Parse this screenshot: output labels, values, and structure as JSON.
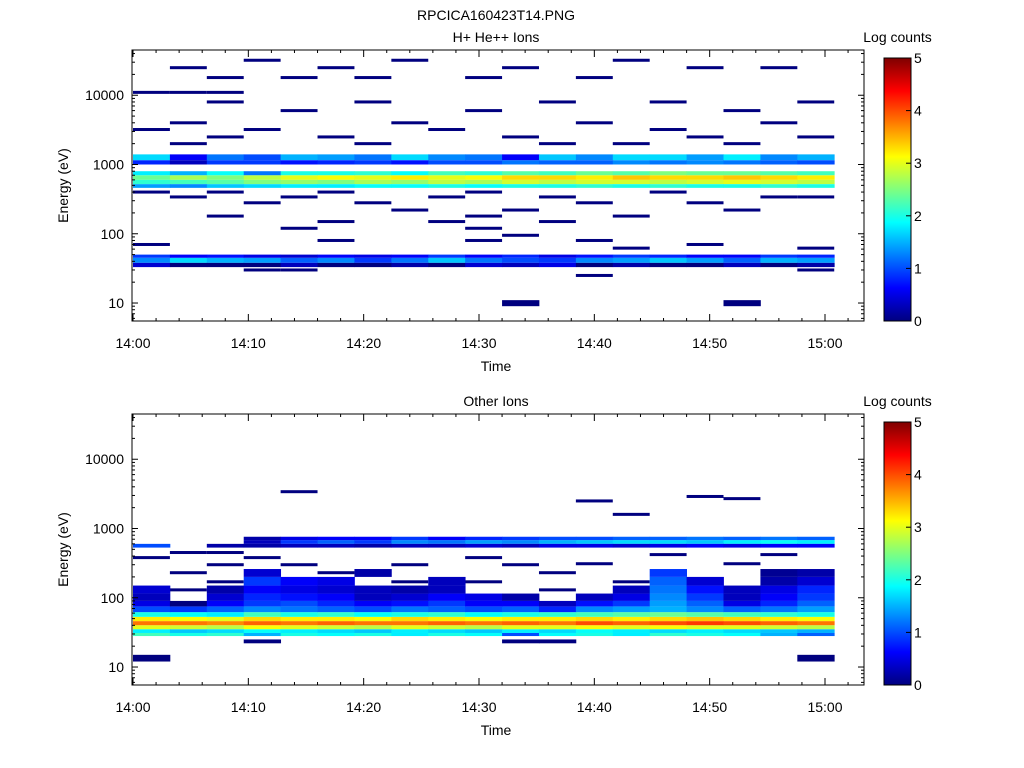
{
  "figure_title": "RPCICA160423T14.PNG",
  "colorbar_label": "Log counts",
  "colors": {
    "jet_stops": [
      "#00007f",
      "#0000ff",
      "#007fff",
      "#00ffff",
      "#7fff7f",
      "#ffff00",
      "#ff7f00",
      "#ff0000",
      "#7f0000"
    ]
  },
  "chart_data": [
    {
      "type": "heatmap",
      "title": "H+ He++ Ions",
      "xlabel": "Time",
      "ylabel": "Energy (eV)",
      "x_ticks": [
        "14:00",
        "14:10",
        "14:20",
        "14:30",
        "14:40",
        "14:50",
        "15:00"
      ],
      "xlim_minutes": [
        0,
        63
      ],
      "y_ticks": [
        "10",
        "100",
        "1000",
        "10000"
      ],
      "y_scale": "log",
      "ylim": [
        5.5,
        45000
      ],
      "colorbar_ticks": [
        "0",
        "1",
        "2",
        "3",
        "4",
        "5"
      ],
      "clim": [
        0,
        5
      ],
      "time_bin_minutes": 3.2,
      "bands": [
        {
          "e0": 600,
          "e1": 700,
          "v": [
            2.4,
            2.7,
            2.5,
            2.8,
            3.0,
            3.1,
            3.0,
            3.2,
            3.0,
            3.1,
            3.3,
            3.3,
            3.2,
            3.4,
            3.3,
            3.3,
            3.4,
            3.3,
            3.2
          ]
        },
        {
          "e0": 520,
          "e1": 600,
          "v": [
            2.1,
            2.2,
            2.3,
            2.5,
            2.6,
            2.5,
            2.7,
            2.6,
            2.8,
            2.7,
            2.9,
            2.8,
            2.9,
            2.9,
            2.8,
            2.9,
            3.0,
            2.9,
            2.8
          ]
        },
        {
          "e0": 460,
          "e1": 520,
          "v": [
            1.4,
            1.3,
            1.6,
            1.7,
            1.8,
            1.8,
            1.9,
            1.9,
            2.0,
            1.9,
            2.0,
            2.0,
            2.1,
            2.0,
            2.1,
            2.0,
            2.0,
            2.1,
            2.0
          ]
        },
        {
          "e0": 700,
          "e1": 800,
          "v": [
            1.8,
            1.5,
            1.9,
            1.2,
            2.0,
            2.0,
            2.1,
            1.9,
            2.2,
            2.1,
            2.3,
            2.2,
            2.4,
            2.3,
            2.5,
            2.4,
            2.4,
            2.3,
            2.2
          ]
        },
        {
          "e0": 1150,
          "e1": 1400,
          "v": [
            1.7,
            0.6,
            1.2,
            1.0,
            1.5,
            1.4,
            1.2,
            1.7,
            1.3,
            1.2,
            0.6,
            1.6,
            1.3,
            1.7,
            1.7,
            1.4,
            1.8,
            1.3,
            1.5
          ]
        },
        {
          "e0": 1000,
          "e1": 1150,
          "v": [
            0.8,
            0.3,
            0.9,
            0.9,
            0.7,
            0.8,
            0.9,
            0.7,
            1.0,
            1.0,
            1.2,
            1.1,
            1.1,
            1.3,
            1.2,
            1.3,
            1.2,
            1.1,
            1.0
          ]
        },
        {
          "e0": 38,
          "e1": 45,
          "v": [
            1.3,
            1.7,
            1.5,
            1.4,
            1.1,
            1.3,
            0.9,
            1.2,
            1.6,
            1.2,
            1.0,
            0.9,
            1.3,
            1.4,
            1.6,
            1.4,
            1.1,
            1.5,
            1.4
          ]
        },
        {
          "e0": 45,
          "e1": 50,
          "v": [
            0.9,
            0.6,
            0.7,
            0.5,
            0.4,
            0.6,
            0.5,
            0.6,
            0.9,
            0.6,
            0.8,
            0.5,
            0.7,
            0.9,
            0.8,
            0.6,
            0.6,
            0.9,
            0.8
          ]
        },
        {
          "e0": 33,
          "e1": 38,
          "v": [
            0.4,
            0.0,
            0.0,
            0.0,
            0.3,
            0.0,
            0.0,
            0.2,
            0.0,
            0.4,
            0.3,
            0.5,
            0.0,
            0.2,
            0.0,
            0.0,
            0.3,
            0.0,
            0.2
          ]
        },
        {
          "e0": 9.0,
          "e1": 11,
          "v": [
            null,
            null,
            null,
            null,
            null,
            null,
            null,
            null,
            null,
            null,
            0.0,
            null,
            null,
            null,
            null,
            null,
            0.0,
            null,
            null
          ]
        }
      ],
      "sparse": [
        {
          "e": 11000,
          "t": [
            0,
            1,
            2
          ]
        },
        {
          "e": 18000,
          "t": [
            2,
            4,
            6,
            9,
            12
          ]
        },
        {
          "e": 25000,
          "t": [
            1,
            5,
            10,
            15,
            17
          ]
        },
        {
          "e": 32000,
          "t": [
            3,
            7,
            13
          ]
        },
        {
          "e": 8000,
          "t": [
            2,
            6,
            11,
            14,
            18
          ]
        },
        {
          "e": 6000,
          "t": [
            4,
            9,
            16
          ]
        },
        {
          "e": 4000,
          "t": [
            1,
            7,
            12,
            17
          ]
        },
        {
          "e": 3200,
          "t": [
            0,
            3,
            8,
            14
          ]
        },
        {
          "e": 2500,
          "t": [
            2,
            5,
            10,
            15,
            18
          ]
        },
        {
          "e": 2000,
          "t": [
            1,
            6,
            11,
            13,
            16
          ]
        },
        {
          "e": 400,
          "t": [
            0,
            2,
            5,
            9,
            14
          ]
        },
        {
          "e": 340,
          "t": [
            1,
            4,
            8,
            11,
            17,
            18
          ]
        },
        {
          "e": 280,
          "t": [
            3,
            6,
            12,
            15
          ]
        },
        {
          "e": 220,
          "t": [
            7,
            10,
            16
          ]
        },
        {
          "e": 180,
          "t": [
            2,
            9,
            13
          ]
        },
        {
          "e": 150,
          "t": [
            5,
            8,
            11
          ]
        },
        {
          "e": 120,
          "t": [
            4,
            9
          ]
        },
        {
          "e": 95,
          "t": [
            10
          ]
        },
        {
          "e": 80,
          "t": [
            5,
            9,
            12
          ]
        },
        {
          "e": 70,
          "t": [
            0,
            15
          ]
        },
        {
          "e": 62,
          "t": [
            13,
            18
          ]
        },
        {
          "e": 30,
          "t": [
            3,
            4,
            18
          ]
        },
        {
          "e": 25,
          "t": [
            12
          ]
        }
      ]
    },
    {
      "type": "heatmap",
      "title": "Other Ions",
      "xlabel": "Time",
      "ylabel": "Energy (eV)",
      "x_ticks": [
        "14:00",
        "14:10",
        "14:20",
        "14:30",
        "14:40",
        "14:50",
        "15:00"
      ],
      "xlim_minutes": [
        0,
        63
      ],
      "y_ticks": [
        "10",
        "100",
        "1000",
        "10000"
      ],
      "y_scale": "log",
      "ylim": [
        5.5,
        45000
      ],
      "colorbar_ticks": [
        "0",
        "1",
        "2",
        "3",
        "4",
        "5"
      ],
      "clim": [
        0,
        5
      ],
      "time_bin_minutes": 3.2,
      "bands": [
        {
          "e0": 40,
          "e1": 46,
          "v": [
            3.8,
            3.8,
            3.7,
            3.9,
            3.8,
            3.9,
            3.8,
            3.8,
            3.9,
            3.8,
            3.9,
            3.8,
            4.0,
            3.9,
            4.0,
            4.1,
            4.0,
            3.9,
            3.8
          ]
        },
        {
          "e0": 46,
          "e1": 53,
          "v": [
            3.2,
            3.1,
            3.0,
            3.3,
            3.2,
            3.2,
            3.1,
            3.3,
            3.2,
            3.1,
            3.2,
            3.2,
            3.3,
            3.2,
            3.3,
            3.4,
            3.3,
            3.2,
            3.1
          ]
        },
        {
          "e0": 35,
          "e1": 40,
          "v": [
            3.0,
            2.9,
            2.8,
            3.1,
            3.0,
            2.9,
            2.8,
            3.0,
            2.9,
            2.8,
            3.0,
            3.0,
            3.1,
            3.0,
            3.1,
            3.0,
            3.0,
            2.9,
            2.8
          ]
        },
        {
          "e0": 53,
          "e1": 62,
          "v": [
            2.0,
            1.9,
            1.8,
            2.2,
            2.0,
            2.1,
            1.9,
            2.0,
            2.1,
            1.9,
            2.0,
            2.1,
            2.2,
            2.3,
            2.4,
            2.3,
            2.2,
            2.1,
            2.0
          ]
        },
        {
          "e0": 31,
          "e1": 35,
          "v": [
            1.8,
            1.6,
            1.7,
            1.9,
            1.8,
            1.7,
            1.6,
            1.8,
            1.7,
            1.6,
            1.8,
            1.7,
            1.9,
            1.8,
            1.7,
            1.8,
            1.7,
            1.6,
            1.5
          ]
        },
        {
          "e0": 28,
          "e1": 31,
          "v": [
            2.2,
            2.0,
            2.1,
            1.5,
            2.0,
            1.9,
            2.0,
            1.8,
            2.0,
            1.9,
            1.0,
            1.9,
            2.0,
            1.8,
            2.1,
            2.0,
            1.9,
            1.5,
            1.1
          ]
        },
        {
          "e0": 62,
          "e1": 75,
          "v": [
            1.0,
            0.9,
            1.1,
            1.3,
            1.2,
            1.1,
            1.0,
            1.2,
            1.1,
            1.0,
            1.1,
            0.8,
            1.3,
            1.4,
            1.5,
            1.3,
            1.1,
            1.2,
            1.4
          ]
        },
        {
          "e0": 75,
          "e1": 90,
          "v": [
            0.5,
            0.0,
            0.6,
            0.9,
            1.0,
            0.8,
            0.6,
            0.7,
            0.9,
            0.6,
            0.6,
            0.3,
            0.7,
            0.9,
            1.4,
            1.1,
            0.5,
            0.8,
            1.1
          ]
        },
        {
          "e0": 90,
          "e1": 115,
          "v": [
            0.3,
            null,
            0.4,
            0.8,
            0.7,
            0.6,
            0.3,
            0.4,
            0.6,
            0.5,
            0.2,
            null,
            0.3,
            0.5,
            1.3,
            0.9,
            0.3,
            0.6,
            0.9
          ]
        },
        {
          "e0": 115,
          "e1": 150,
          "v": [
            0.4,
            null,
            0.2,
            0.6,
            0.5,
            0.4,
            0.3,
            0.2,
            0.3,
            null,
            null,
            null,
            null,
            0.3,
            1.2,
            0.7,
            0.3,
            0.5,
            0.8
          ]
        },
        {
          "e0": 150,
          "e1": 200,
          "v": [
            null,
            null,
            null,
            0.9,
            0.6,
            0.5,
            null,
            null,
            0.3,
            null,
            null,
            null,
            null,
            null,
            1.1,
            0.4,
            null,
            0.2,
            0.4
          ]
        },
        {
          "e0": 200,
          "e1": 260,
          "v": [
            null,
            null,
            null,
            0.4,
            null,
            null,
            0.2,
            null,
            null,
            null,
            null,
            null,
            null,
            null,
            0.9,
            null,
            null,
            0.1,
            0.2
          ]
        },
        {
          "e0": 600,
          "e1": 680,
          "v": [
            null,
            null,
            null,
            0.3,
            0.9,
            1.1,
            0.9,
            1.3,
            1.2,
            1.4,
            1.3,
            1.5,
            1.6,
            1.7,
            1.7,
            1.6,
            1.8,
            1.9,
            1.8
          ]
        },
        {
          "e0": 680,
          "e1": 760,
          "v": [
            null,
            null,
            null,
            0.2,
            0.5,
            0.6,
            0.6,
            0.9,
            0.6,
            0.8,
            0.9,
            1.0,
            1.0,
            1.1,
            1.1,
            1.2,
            1.1,
            1.2,
            1.1
          ]
        },
        {
          "e0": 530,
          "e1": 600,
          "v": [
            1.0,
            null,
            0.2,
            0.2,
            0.3,
            0.3,
            0.2,
            0.3,
            0.3,
            0.4,
            0.3,
            0.5,
            0.5,
            0.4,
            0.5,
            0.6,
            0.5,
            0.6,
            0.6
          ]
        },
        {
          "e0": 12,
          "e1": 15,
          "v": [
            0.0,
            null,
            null,
            null,
            null,
            null,
            null,
            null,
            null,
            null,
            null,
            null,
            null,
            null,
            null,
            null,
            null,
            null,
            0.0
          ]
        },
        {
          "e0": 22,
          "e1": 25,
          "v": [
            null,
            null,
            null,
            0.0,
            null,
            null,
            null,
            null,
            null,
            null,
            0.0,
            0.0,
            null,
            null,
            null,
            null,
            null,
            null,
            null
          ]
        }
      ],
      "sparse": [
        {
          "e": 3400,
          "t": [
            4
          ]
        },
        {
          "e": 2500,
          "t": [
            12
          ]
        },
        {
          "e": 1600,
          "t": [
            13
          ]
        },
        {
          "e": 2900,
          "t": [
            15
          ]
        },
        {
          "e": 2700,
          "t": [
            16
          ]
        },
        {
          "e": 450,
          "t": [
            1,
            2
          ]
        },
        {
          "e": 380,
          "t": [
            0,
            3,
            9
          ]
        },
        {
          "e": 300,
          "t": [
            2,
            4,
            7,
            10
          ]
        },
        {
          "e": 230,
          "t": [
            1,
            5,
            11
          ]
        },
        {
          "e": 170,
          "t": [
            2,
            7,
            9,
            13
          ]
        },
        {
          "e": 130,
          "t": [
            1,
            11
          ]
        },
        {
          "e": 310,
          "t": [
            12,
            16
          ]
        },
        {
          "e": 420,
          "t": [
            14,
            17
          ]
        }
      ]
    }
  ]
}
